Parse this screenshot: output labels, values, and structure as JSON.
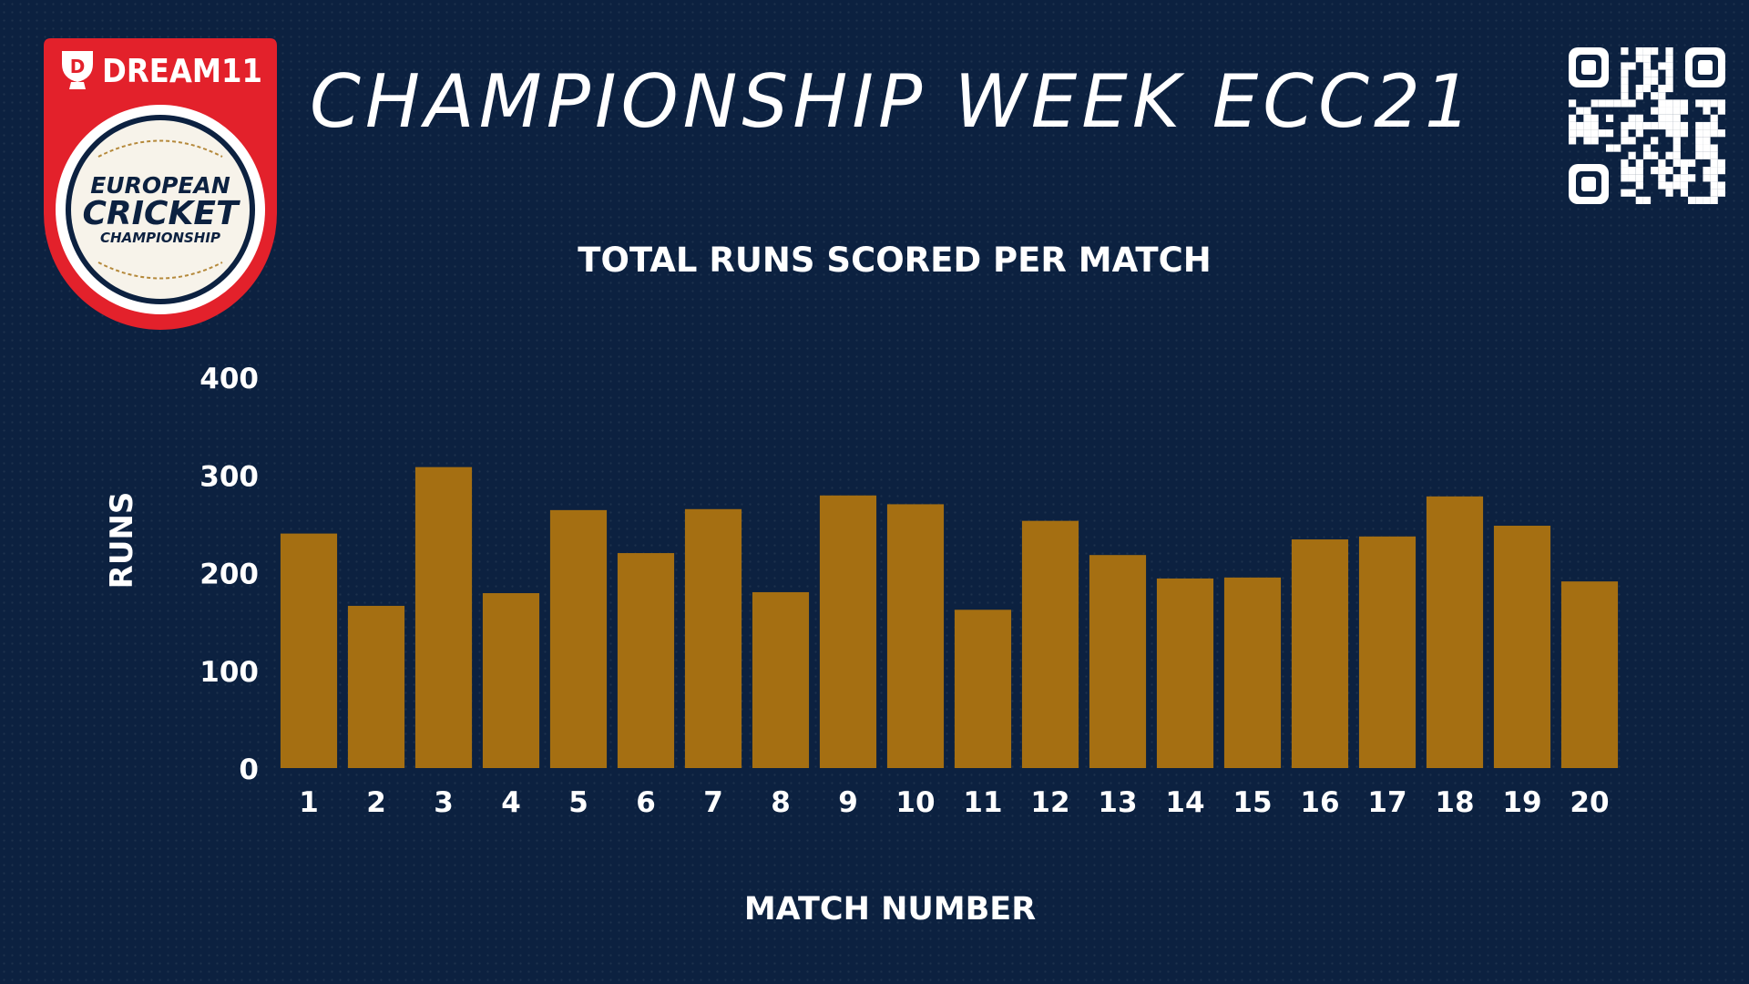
{
  "header": {
    "title": "CHAMPIONSHIP WEEK ECC21",
    "logo": {
      "brand": "DREAM11",
      "line1": "EUROPEAN",
      "line2": "CRICKET",
      "line3": "CHAMPIONSHIP"
    },
    "qr_icon": "qr-code-icon"
  },
  "colors": {
    "background": "#0c2140",
    "bar": "#a56f12",
    "text": "#ffffff",
    "logo_red": "#e3212b",
    "logo_gold": "#b5893b"
  },
  "chart_data": {
    "type": "bar",
    "title": "TOTAL RUNS SCORED PER MATCH",
    "xlabel": "MATCH NUMBER",
    "ylabel": "RUNS",
    "ylim": [
      0,
      400
    ],
    "yticks": [
      0,
      100,
      200,
      300,
      400
    ],
    "grid": false,
    "categories": [
      "1",
      "2",
      "3",
      "4",
      "5",
      "6",
      "7",
      "8",
      "9",
      "10",
      "11",
      "12",
      "13",
      "14",
      "15",
      "16",
      "17",
      "18",
      "19",
      "20"
    ],
    "values": [
      240,
      166,
      308,
      179,
      264,
      220,
      265,
      180,
      279,
      270,
      162,
      253,
      218,
      194,
      195,
      234,
      237,
      278,
      248,
      191
    ]
  }
}
